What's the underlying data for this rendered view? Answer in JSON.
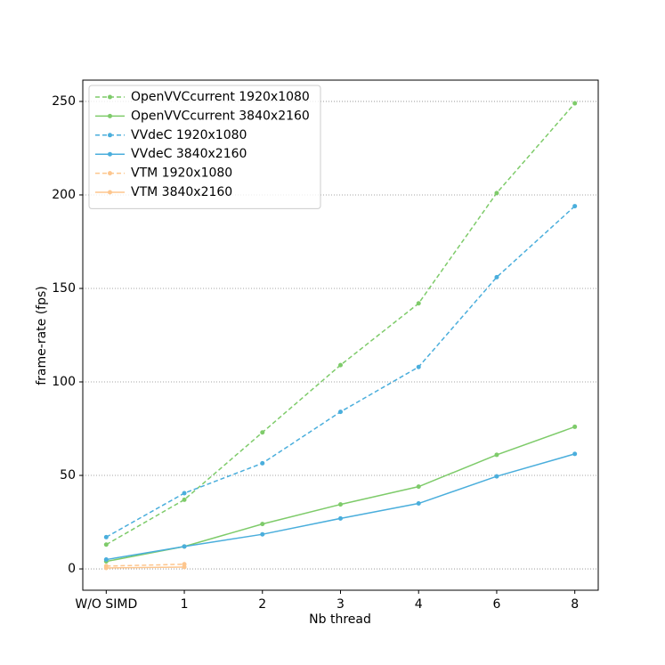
{
  "chart_data": {
    "type": "line",
    "xlabel": "Nb thread",
    "ylabel": "frame-rate (fps)",
    "categories": [
      "W/O SIMD",
      "1",
      "2",
      "3",
      "4",
      "6",
      "8"
    ],
    "series": [
      {
        "name": "OpenVVCcurrent 1920x1080",
        "color": "#7ecb6a",
        "style": "dashed",
        "values": [
          13,
          37,
          73,
          109,
          142,
          201,
          249
        ]
      },
      {
        "name": "OpenVVCcurrent 3840x2160",
        "color": "#7ecb6a",
        "style": "solid",
        "values": [
          4,
          12,
          24,
          34.5,
          44,
          61,
          76
        ]
      },
      {
        "name": "VVdeC 1920x1080",
        "color": "#4aaedc",
        "style": "dashed",
        "values": [
          17,
          40.5,
          56.5,
          84,
          108,
          156,
          194
        ]
      },
      {
        "name": "VVdeC 3840x2160",
        "color": "#4aaedc",
        "style": "solid",
        "values": [
          5,
          12,
          18.5,
          27,
          35,
          49.5,
          61.5
        ]
      },
      {
        "name": "VTM 1920x1080",
        "color": "#fdc68e",
        "style": "dashed",
        "values": [
          1.5,
          2.5,
          null,
          null,
          null,
          null,
          null
        ]
      },
      {
        "name": "VTM 3840x2160",
        "color": "#fdc68e",
        "style": "solid",
        "values": [
          0.5,
          1,
          null,
          null,
          null,
          null,
          null
        ]
      }
    ],
    "ylim": [
      -11.4,
      261.4
    ],
    "yticks": [
      0,
      50,
      100,
      150,
      200,
      250
    ],
    "grid": true,
    "legend": "upper left"
  }
}
